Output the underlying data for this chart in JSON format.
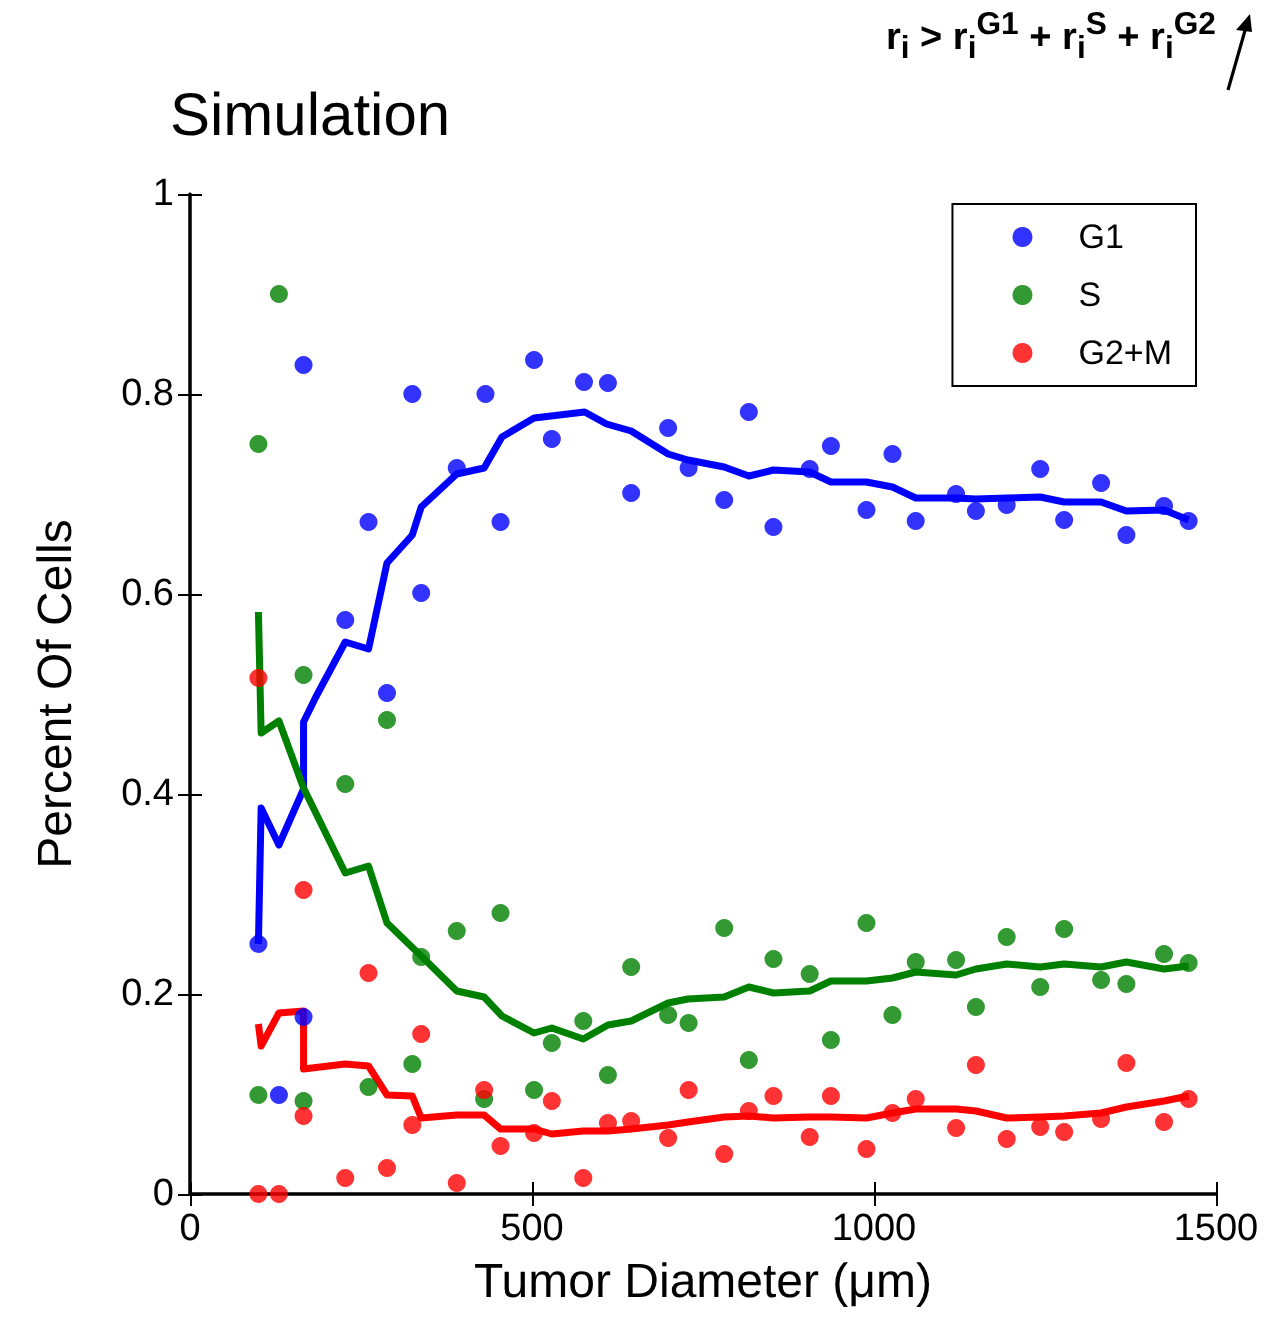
{
  "chart_data": {
    "type": "scatter",
    "title": "Simulation",
    "xlabel": "Tumor Diameter (μm)",
    "ylabel": "Percent Of Cells",
    "annotations": [
      "r$_{i}$ > r$_{i}$$^{G1}$ + r$_{i}$$^{S}$ + r$_{i}$$^{G2}$"
    ],
    "xlim": [
      0,
      1500
    ],
    "xticks": [
      0,
      500,
      1000,
      1500
    ],
    "ylim": [
      0,
      1
    ],
    "yticks": [
      0,
      0.2,
      0.4,
      0.6,
      0.8,
      1
    ],
    "grid": false,
    "legend": "top right",
    "marker": "circle",
    "series": [
      {
        "name": "G1",
        "type": "scatter",
        "color": "#0000ff",
        "x": [
          100,
          130,
          166,
          166,
          227,
          261,
          288,
          325,
          338,
          390,
          432,
          454,
          503,
          529,
          576,
          611,
          645,
          699,
          729,
          781,
          817,
          853,
          906,
          937,
          989,
          1027,
          1061,
          1120,
          1149,
          1194,
          1243,
          1278,
          1332,
          1369,
          1424,
          1460
        ],
        "values": [
          0.25,
          0.099,
          0.829,
          0.177,
          0.574,
          0.672,
          0.501,
          0.8,
          0.601,
          0.726,
          0.8,
          0.672,
          0.834,
          0.755,
          0.812,
          0.811,
          0.701,
          0.766,
          0.726,
          0.694,
          0.782,
          0.667,
          0.725,
          0.748,
          0.684,
          0.74,
          0.673,
          0.7,
          0.683,
          0.689,
          0.725,
          0.674,
          0.711,
          0.659,
          0.688,
          0.673
        ]
      },
      {
        "name": "S",
        "type": "scatter",
        "color": "#008000",
        "x": [
          100,
          100,
          130,
          166,
          166,
          227,
          261,
          288,
          325,
          338,
          390,
          430,
          454,
          503,
          529,
          575,
          611,
          645,
          699,
          729,
          781,
          817,
          853,
          906,
          937,
          989,
          1027,
          1061,
          1120,
          1149,
          1194,
          1243,
          1278,
          1332,
          1369,
          1424,
          1460
        ],
        "values": [
          0.75,
          0.099,
          0.9,
          0.519,
          0.093,
          0.41,
          0.107,
          0.474,
          0.13,
          0.237,
          0.263,
          0.095,
          0.281,
          0.104,
          0.151,
          0.173,
          0.119,
          0.227,
          0.179,
          0.171,
          0.266,
          0.134,
          0.235,
          0.22,
          0.154,
          0.271,
          0.179,
          0.232,
          0.234,
          0.187,
          0.257,
          0.207,
          0.265,
          0.214,
          0.21,
          0.24,
          0.231
        ]
      },
      {
        "name": "G2+M",
        "type": "scatter",
        "color": "#ff0000",
        "x": [
          100,
          100,
          130,
          166,
          166,
          227,
          261,
          288,
          325,
          338,
          390,
          430,
          454,
          503,
          529,
          575,
          611,
          645,
          699,
          729,
          781,
          817,
          853,
          906,
          937,
          989,
          1027,
          1061,
          1120,
          1149,
          1194,
          1243,
          1278,
          1332,
          1369,
          1424,
          1460
        ],
        "values": [
          0.516,
          0,
          0,
          0.304,
          0.078,
          0.016,
          0.221,
          0.026,
          0.069,
          0.16,
          0.011,
          0.104,
          0.048,
          0.061,
          0.093,
          0.016,
          0.071,
          0.073,
          0.056,
          0.104,
          0.04,
          0.083,
          0.098,
          0.057,
          0.098,
          0.045,
          0.081,
          0.095,
          0.066,
          0.129,
          0.055,
          0.067,
          0.062,
          0.075,
          0.131,
          0.072,
          0.095
        ]
      },
      {
        "type": "line",
        "marker": "none",
        "color": "#0000ff",
        "x": [
          100,
          104,
          130,
          166,
          166,
          184,
          227,
          261,
          288,
          325,
          338,
          390,
          430,
          456,
          503,
          577,
          609,
          645,
          699,
          728,
          781,
          817,
          853,
          906,
          937,
          989,
          1027,
          1061,
          1120,
          1149,
          1194,
          1243,
          1278,
          1332,
          1369,
          1424,
          1460
        ],
        "values": [
          0.25,
          0.386,
          0.349,
          0.405,
          0.472,
          0.497,
          0.552,
          0.545,
          0.631,
          0.659,
          0.687,
          0.72,
          0.726,
          0.757,
          0.776,
          0.782,
          0.77,
          0.763,
          0.74,
          0.734,
          0.727,
          0.718,
          0.724,
          0.722,
          0.712,
          0.712,
          0.707,
          0.696,
          0.696,
          0.695,
          0.696,
          0.697,
          0.692,
          0.692,
          0.683,
          0.684,
          0.674
        ]
      },
      {
        "type": "line",
        "marker": "none",
        "color": "#008000",
        "x": [
          100,
          104,
          130,
          166,
          227,
          261,
          288,
          338,
          390,
          430,
          456,
          503,
          529,
          575,
          611,
          645,
          699,
          728,
          781,
          817,
          853,
          906,
          937,
          989,
          1027,
          1061,
          1120,
          1149,
          1194,
          1243,
          1278,
          1332,
          1369,
          1424,
          1460
        ],
        "values": [
          0.582,
          0.461,
          0.473,
          0.406,
          0.321,
          0.328,
          0.271,
          0.238,
          0.203,
          0.197,
          0.178,
          0.161,
          0.166,
          0.155,
          0.169,
          0.173,
          0.191,
          0.195,
          0.197,
          0.207,
          0.201,
          0.203,
          0.213,
          0.213,
          0.216,
          0.222,
          0.219,
          0.225,
          0.23,
          0.227,
          0.23,
          0.227,
          0.232,
          0.225,
          0.228
        ]
      },
      {
        "type": "line",
        "marker": "none",
        "color": "#ff0000",
        "x": [
          100,
          104,
          130,
          166,
          166,
          227,
          261,
          288,
          325,
          338,
          390,
          430,
          454,
          503,
          529,
          575,
          611,
          645,
          699,
          728,
          781,
          817,
          853,
          906,
          937,
          989,
          1027,
          1061,
          1120,
          1149,
          1194,
          1243,
          1278,
          1332,
          1369,
          1424,
          1460
        ],
        "values": [
          0.17,
          0.148,
          0.181,
          0.183,
          0.125,
          0.13,
          0.128,
          0.099,
          0.098,
          0.076,
          0.079,
          0.079,
          0.065,
          0.065,
          0.06,
          0.063,
          0.063,
          0.065,
          0.069,
          0.072,
          0.077,
          0.078,
          0.076,
          0.077,
          0.077,
          0.076,
          0.081,
          0.085,
          0.085,
          0.083,
          0.076,
          0.077,
          0.078,
          0.081,
          0.087,
          0.093,
          0.098
        ]
      }
    ]
  }
}
